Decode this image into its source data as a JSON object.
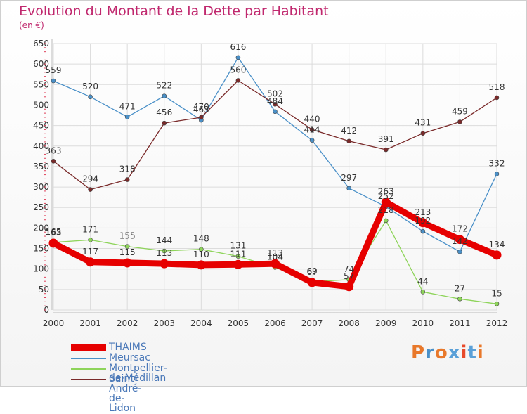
{
  "title": "Evolution du Montant de la Dette par Habitant",
  "subtitle": "(en €)",
  "logo": {
    "text": "Proxiti",
    "colors": [
      "#e8782a",
      "#4a90c8",
      "#e8782a",
      "#5aa0d8",
      "#e84a2a",
      "#5aa0d8",
      "#e8782a"
    ]
  },
  "chart_data": {
    "type": "line",
    "title": "Evolution du Montant de la Dette par Habitant",
    "ylabel": "(en €)",
    "xlabel": "",
    "x": [
      "2000",
      "2001",
      "2002",
      "2003",
      "2004",
      "2005",
      "2006",
      "2007",
      "2008",
      "2009",
      "2010",
      "2011",
      "2012"
    ],
    "ylim": [
      0,
      650
    ],
    "yticks": [
      0,
      50,
      100,
      150,
      200,
      250,
      300,
      350,
      400,
      450,
      500,
      550,
      600,
      650
    ],
    "grid": true,
    "legend_position": "bottom-left",
    "series": [
      {
        "name": "THAIMS",
        "color": "#e60000",
        "values": [
          163,
          117,
          115,
          113,
          110,
          111,
          113,
          67,
          57,
          263,
          213,
          172,
          134
        ],
        "labels": [
          "163",
          "117",
          "115",
          "113",
          "110",
          "111",
          "113",
          "67",
          "57",
          "263",
          "213",
          "172",
          "134"
        ]
      },
      {
        "name": "Meursac",
        "color": "#4a90c8",
        "values": [
          559,
          520,
          471,
          522,
          463,
          616,
          484,
          414,
          297,
          252,
          192,
          142,
          332
        ],
        "labels": [
          "559",
          "520",
          "471",
          "522",
          "463",
          "616",
          "484",
          "414",
          "297",
          "252",
          "192",
          "142",
          "332"
        ]
      },
      {
        "name": "Montpellier-de-Médillan",
        "color": "#8ed45a",
        "values": [
          165,
          171,
          155,
          144,
          148,
          131,
          104,
          69,
          74,
          218,
          44,
          27,
          15
        ],
        "labels": [
          "165",
          "171",
          "155",
          "144",
          "148",
          "131",
          "104",
          "69",
          "74",
          "218",
          "44",
          "27",
          "15"
        ]
      },
      {
        "name": "Saint-André-de-Lidon",
        "color": "#7a2a2a",
        "values": [
          363,
          294,
          318,
          456,
          470,
          560,
          502,
          440,
          412,
          391,
          431,
          459,
          518
        ],
        "labels": [
          "363",
          "294",
          "318",
          "456",
          "470",
          "560",
          "502",
          "440",
          "412",
          "391",
          "431",
          "459",
          "518"
        ]
      }
    ]
  }
}
